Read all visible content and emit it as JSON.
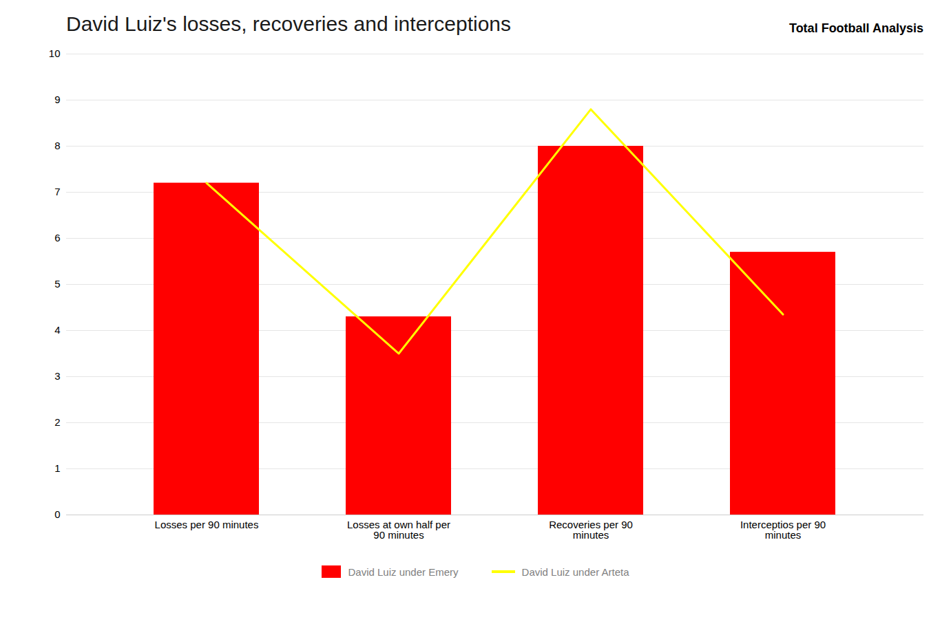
{
  "chart_data": {
    "type": "bar",
    "title": "David Luiz's losses, recoveries and interceptions",
    "annotations": [
      "Total Football Analysis"
    ],
    "categories": [
      "Losses per 90 minutes",
      "Losses at own half per\n90 minutes",
      "Recoveries per 90\nminutes",
      "Interceptios per 90\nminutes"
    ],
    "series": [
      {
        "name": "David Luiz under Emery",
        "type": "bar",
        "color": "#FF0000",
        "values": [
          7.2,
          4.3,
          8.0,
          5.7
        ]
      },
      {
        "name": "David Luiz under Arteta",
        "type": "line",
        "color": "#FFFF00",
        "values": [
          7.2,
          3.5,
          8.8,
          4.35
        ]
      }
    ],
    "ylim": [
      0,
      10
    ],
    "yticks": [
      0,
      1,
      2,
      3,
      4,
      5,
      6,
      7,
      8,
      9,
      10
    ],
    "grid": true,
    "legend": "bottom"
  }
}
